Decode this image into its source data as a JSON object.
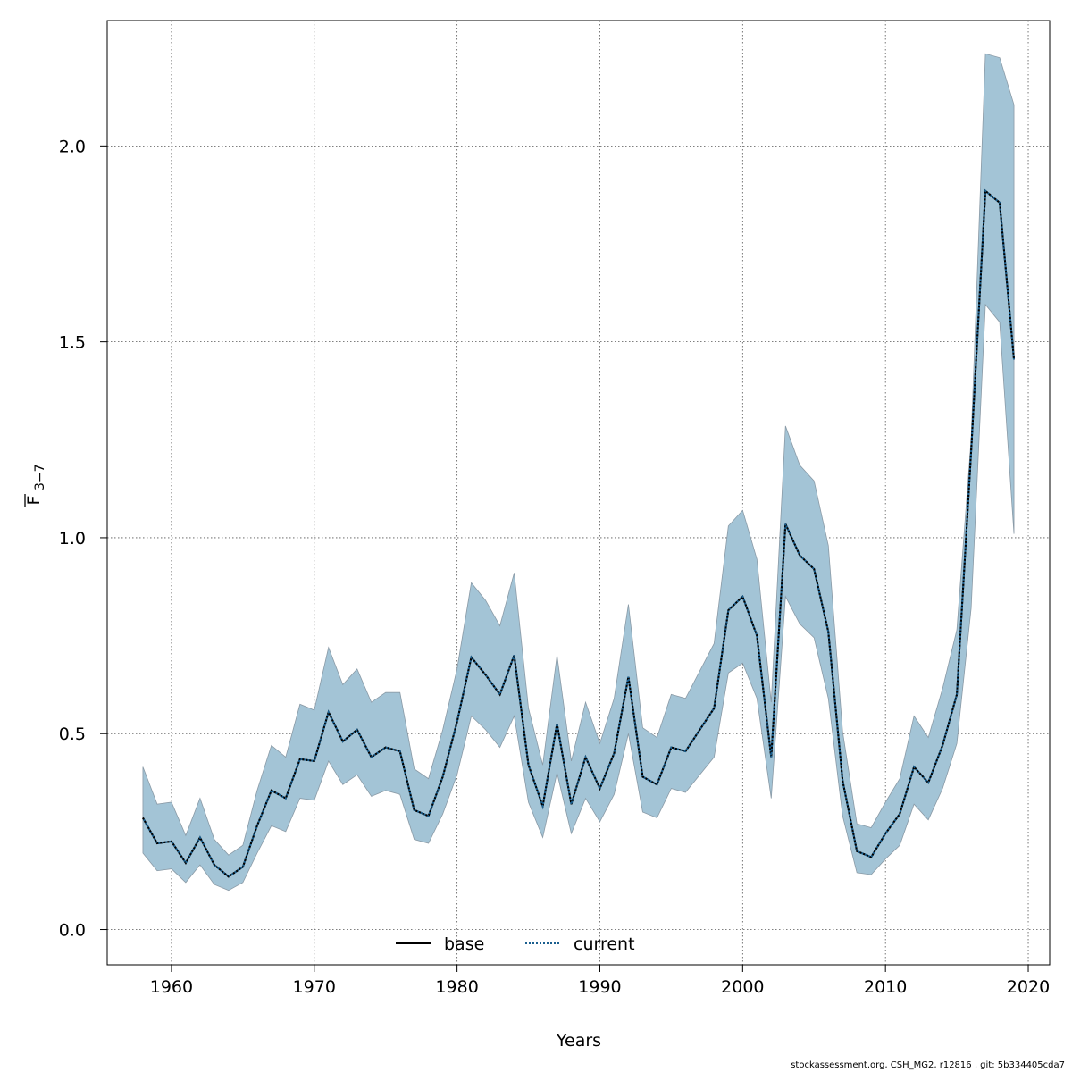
{
  "chart_data": {
    "type": "area",
    "xlabel": "Years",
    "ylabel_main": "F",
    "ylabel_sub": "3−7",
    "xlim": [
      1955.5,
      2021.5
    ],
    "ylim": [
      -0.09,
      2.32
    ],
    "x_ticks": [
      1960,
      1970,
      1980,
      1990,
      2000,
      2010,
      2020
    ],
    "y_ticks": [
      0.0,
      0.5,
      1.0,
      1.5,
      2.0
    ],
    "x_tick_labels": [
      "1960",
      "1970",
      "1980",
      "1990",
      "2000",
      "2010",
      "2020"
    ],
    "y_tick_labels": [
      "0.0",
      "0.5",
      "1.0",
      "1.5",
      "2.0"
    ],
    "grid": true,
    "legend_position": "bottom-center",
    "colors": {
      "band": "#a3c4d6",
      "band_edge": "#8a9aa6",
      "base": "#000000",
      "current": "#1a5f8f"
    },
    "x": [
      1958,
      1959,
      1960,
      1961,
      1962,
      1963,
      1964,
      1965,
      1966,
      1967,
      1968,
      1969,
      1970,
      1971,
      1972,
      1973,
      1974,
      1975,
      1976,
      1977,
      1978,
      1979,
      1980,
      1981,
      1982,
      1983,
      1984,
      1985,
      1986,
      1987,
      1988,
      1989,
      1990,
      1991,
      1992,
      1993,
      1994,
      1995,
      1996,
      1997,
      1998,
      1999,
      2000,
      2001,
      2002,
      2003,
      2004,
      2005,
      2006,
      2007,
      2008,
      2009,
      2010,
      2011,
      2012,
      2013,
      2014,
      2015,
      2016,
      2017,
      2018,
      2019
    ],
    "series": [
      {
        "name": "base",
        "style": "solid",
        "values": [
          0.285,
          0.22,
          0.225,
          0.17,
          0.235,
          0.165,
          0.135,
          0.16,
          0.265,
          0.355,
          0.335,
          0.435,
          0.43,
          0.555,
          0.48,
          0.51,
          0.44,
          0.465,
          0.455,
          0.305,
          0.29,
          0.39,
          0.53,
          0.695,
          0.65,
          0.6,
          0.7,
          0.42,
          0.315,
          0.525,
          0.32,
          0.44,
          0.36,
          0.45,
          0.645,
          0.39,
          0.37,
          0.465,
          0.455,
          0.51,
          0.565,
          0.815,
          0.85,
          0.75,
          0.44,
          1.035,
          0.955,
          0.92,
          0.76,
          0.38,
          0.2,
          0.185,
          0.245,
          0.295,
          0.415,
          0.375,
          0.47,
          0.6,
          1.22,
          1.885,
          1.855,
          1.455
        ]
      },
      {
        "name": "current",
        "style": "dotted",
        "values": [
          0.285,
          0.22,
          0.225,
          0.17,
          0.235,
          0.165,
          0.135,
          0.16,
          0.265,
          0.355,
          0.335,
          0.435,
          0.43,
          0.555,
          0.48,
          0.51,
          0.44,
          0.465,
          0.455,
          0.305,
          0.29,
          0.39,
          0.53,
          0.695,
          0.65,
          0.6,
          0.7,
          0.42,
          0.315,
          0.525,
          0.32,
          0.44,
          0.36,
          0.45,
          0.645,
          0.39,
          0.37,
          0.465,
          0.455,
          0.51,
          0.565,
          0.815,
          0.85,
          0.75,
          0.44,
          1.035,
          0.955,
          0.92,
          0.76,
          0.38,
          0.2,
          0.185,
          0.245,
          0.295,
          0.415,
          0.375,
          0.47,
          0.6,
          1.22,
          1.885,
          1.855,
          1.455
        ]
      }
    ],
    "band": {
      "upper": [
        0.415,
        0.32,
        0.325,
        0.24,
        0.335,
        0.23,
        0.19,
        0.215,
        0.355,
        0.47,
        0.44,
        0.575,
        0.56,
        0.72,
        0.625,
        0.665,
        0.58,
        0.605,
        0.605,
        0.41,
        0.385,
        0.51,
        0.665,
        0.885,
        0.84,
        0.775,
        0.91,
        0.565,
        0.42,
        0.7,
        0.43,
        0.58,
        0.475,
        0.59,
        0.83,
        0.515,
        0.49,
        0.6,
        0.59,
        0.66,
        0.73,
        1.03,
        1.07,
        0.945,
        0.58,
        1.285,
        1.185,
        1.145,
        0.98,
        0.505,
        0.27,
        0.26,
        0.325,
        0.385,
        0.545,
        0.49,
        0.615,
        0.765,
        1.25,
        2.235,
        2.225,
        2.105
      ],
      "lower": [
        0.195,
        0.15,
        0.155,
        0.12,
        0.165,
        0.115,
        0.1,
        0.12,
        0.195,
        0.265,
        0.25,
        0.335,
        0.33,
        0.43,
        0.37,
        0.395,
        0.34,
        0.355,
        0.345,
        0.23,
        0.22,
        0.295,
        0.395,
        0.545,
        0.51,
        0.465,
        0.545,
        0.325,
        0.235,
        0.4,
        0.245,
        0.335,
        0.275,
        0.345,
        0.5,
        0.3,
        0.285,
        0.36,
        0.35,
        0.395,
        0.44,
        0.655,
        0.68,
        0.59,
        0.335,
        0.85,
        0.78,
        0.745,
        0.59,
        0.29,
        0.145,
        0.14,
        0.18,
        0.215,
        0.32,
        0.28,
        0.36,
        0.475,
        0.82,
        1.595,
        1.55,
        1.01
      ]
    }
  },
  "footer": "stockassessment.org, CSH_MG2, r12816 , git: 5b334405cda7"
}
